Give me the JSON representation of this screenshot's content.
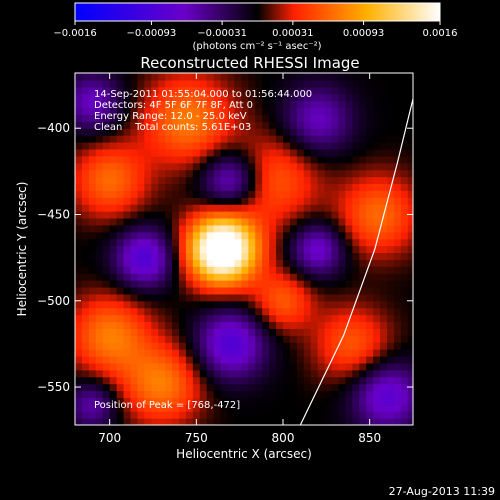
{
  "chart_data": {
    "type": "heatmap",
    "title": "Reconstructed RHESSI Image",
    "xlabel": "Heliocentric X (arcsec)",
    "ylabel": "Heliocentric Y (arcsec)",
    "xlim": [
      680,
      875
    ],
    "ylim": [
      -572,
      -368
    ],
    "x_ticks": [
      700,
      750,
      800,
      850
    ],
    "y_ticks": [
      -400,
      -450,
      -500,
      -550
    ],
    "colorbar": {
      "range": [
        -0.0016,
        0.0016
      ],
      "tick_values": [
        -0.0016,
        -0.00093,
        -0.00031,
        0.00031,
        0.00093,
        0.0016
      ],
      "tick_labels": [
        "-0.0016",
        "-0.00093",
        "-0.00031",
        "0.00031",
        "0.00093",
        "0.0016"
      ],
      "units": "(photons cm⁻² s⁻¹ asec⁻²)",
      "colors": [
        "#0000ff",
        "#6a00c8",
        "#000000",
        "#ff2000",
        "#ffb000",
        "#ffffff"
      ]
    },
    "info_lines": [
      "14-Sep-2011 01:55:04.000 to 01:56:44.000",
      "Detectors: 4F 5F 6F 7F 8F, Att 0",
      "Energy Range: 12.0 - 25.0 keV",
      "Clean    Total counts: 5.61E+03"
    ],
    "peak_label": "Position of Peak = [768,-472]",
    "peak": {
      "x": 768,
      "y": -472,
      "value": 0.0016
    },
    "limb_curve": [
      [
        810,
        -572
      ],
      [
        835,
        -520
      ],
      [
        853,
        -470
      ],
      [
        866,
        -420
      ],
      [
        875,
        -383
      ]
    ],
    "blobs": [
      {
        "x": 765,
        "y": -470,
        "sigma": 14,
        "amp": 1.3
      },
      {
        "x": 745,
        "y": -395,
        "sigma": 18,
        "amp": 0.45
      },
      {
        "x": 700,
        "y": -430,
        "sigma": 15,
        "amp": 0.4
      },
      {
        "x": 795,
        "y": -430,
        "sigma": 18,
        "amp": 0.35
      },
      {
        "x": 700,
        "y": -520,
        "sigma": 16,
        "amp": 0.45
      },
      {
        "x": 730,
        "y": -548,
        "sigma": 16,
        "amp": 0.45
      },
      {
        "x": 855,
        "y": -450,
        "sigma": 16,
        "amp": 0.4
      },
      {
        "x": 840,
        "y": -525,
        "sigma": 15,
        "amp": 0.35
      },
      {
        "x": 800,
        "y": -500,
        "sigma": 12,
        "amp": 0.35
      },
      {
        "x": 720,
        "y": -475,
        "sigma": 12,
        "amp": -0.55
      },
      {
        "x": 770,
        "y": -430,
        "sigma": 12,
        "amp": -0.5
      },
      {
        "x": 820,
        "y": -395,
        "sigma": 14,
        "amp": -0.4
      },
      {
        "x": 820,
        "y": -470,
        "sigma": 11,
        "amp": -0.45
      },
      {
        "x": 770,
        "y": -525,
        "sigma": 14,
        "amp": -0.55
      },
      {
        "x": 860,
        "y": -555,
        "sigma": 14,
        "amp": -0.5
      },
      {
        "x": 690,
        "y": -385,
        "sigma": 12,
        "amp": -0.4
      },
      {
        "x": 690,
        "y": -560,
        "sigma": 10,
        "amp": -0.35
      }
    ]
  },
  "footer": {
    "timestamp": "27-Aug-2013 11:39"
  }
}
